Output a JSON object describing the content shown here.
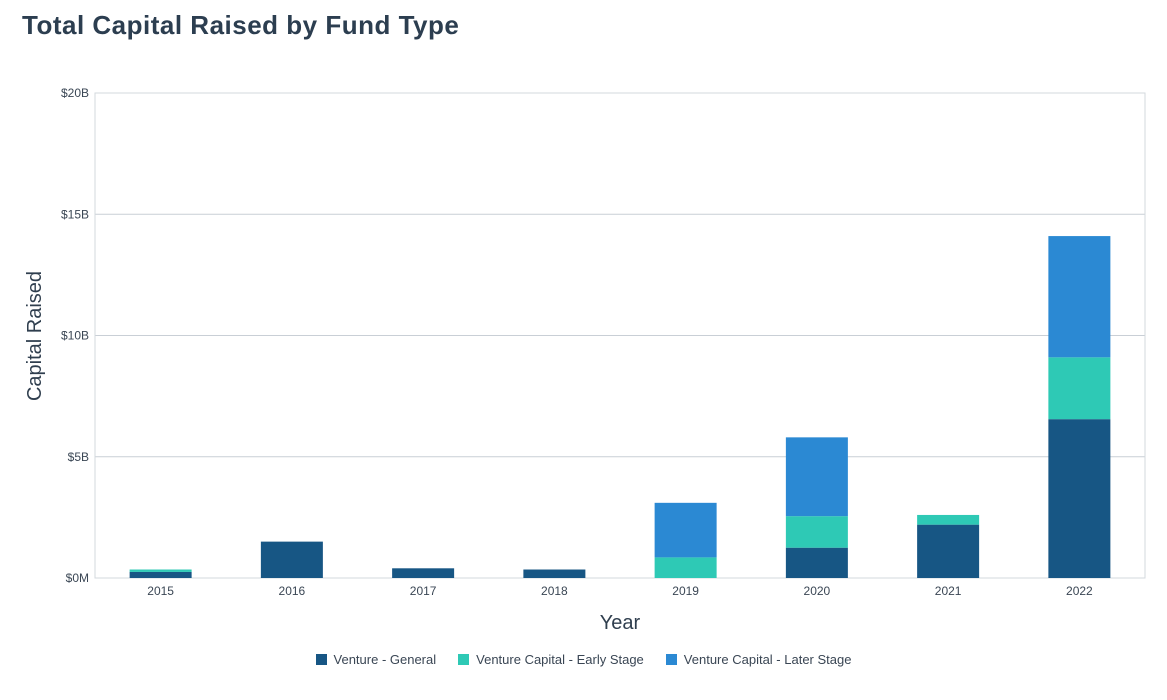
{
  "chart_data": {
    "type": "bar",
    "stacked": true,
    "title": "Total Capital Raised by Fund Type",
    "xlabel": "Year",
    "ylabel": "Capital Raised",
    "categories": [
      "2015",
      "2016",
      "2017",
      "2018",
      "2019",
      "2020",
      "2021",
      "2022"
    ],
    "ylim": [
      0,
      20
    ],
    "y_unit": "billions USD",
    "y_ticks": [
      0,
      5,
      10,
      15,
      20
    ],
    "y_tick_labels": [
      "$0M",
      "$5B",
      "$10B",
      "$15B",
      "$20B"
    ],
    "grid": true,
    "legend_position": "bottom",
    "series": [
      {
        "name": "Venture - General",
        "color": "#175684",
        "values": [
          0.25,
          1.5,
          0.4,
          0.35,
          0,
          1.25,
          2.2,
          6.55
        ]
      },
      {
        "name": "Venture Capital - Early Stage",
        "color": "#2ec9b5",
        "values": [
          0.1,
          0,
          0,
          0,
          0.85,
          1.3,
          0.4,
          2.55
        ]
      },
      {
        "name": "Venture Capital - Later Stage",
        "color": "#2b89d3",
        "values": [
          0,
          0,
          0,
          0,
          2.25,
          3.25,
          0,
          5.0
        ]
      }
    ]
  }
}
